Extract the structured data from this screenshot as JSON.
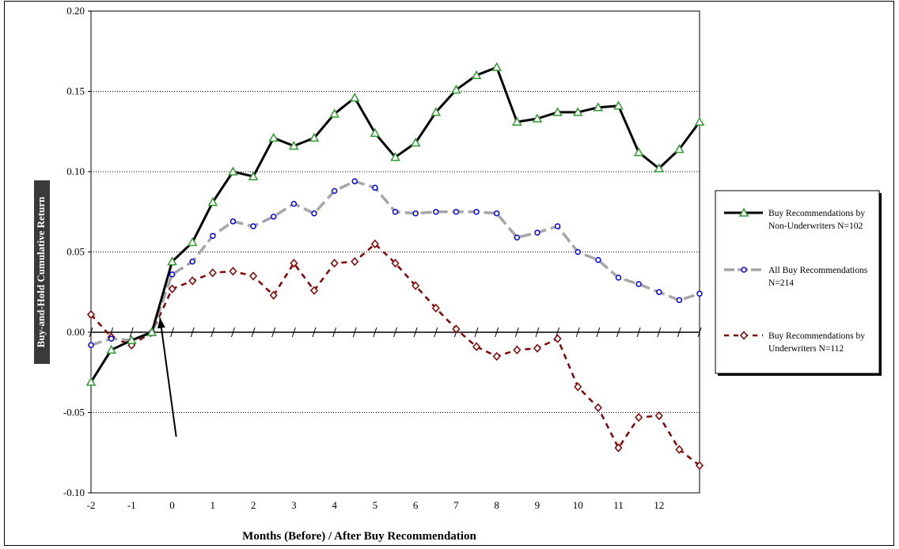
{
  "chart_data": {
    "type": "line",
    "title": "",
    "xlabel": "Months (Before) / After Buy Recommendation",
    "ylabel": "Buy-and-Hold Cumulative Return",
    "ylim": [
      -0.1,
      0.2
    ],
    "y_ticks": [
      "0.20",
      "0.15",
      "0.10",
      "0.05",
      "0.00",
      "-0.05",
      "-0.10"
    ],
    "x_tick_labels": [
      "-2",
      "-1",
      "0",
      "1",
      "2",
      "3",
      "4",
      "5",
      "6",
      "7",
      "8",
      "9",
      "10",
      "11",
      "12"
    ],
    "grid": "horizontal dotted",
    "legend_position": "right",
    "x": [
      -2,
      -1.5,
      -1,
      -0.5,
      0,
      0.5,
      1,
      1.5,
      2,
      2.5,
      3,
      3.5,
      4,
      4.5,
      5,
      5.5,
      6,
      6.5,
      7,
      7.5,
      8,
      8.5,
      9,
      9.5,
      10,
      10.5,
      11,
      11.5,
      12,
      12.5,
      13
    ],
    "series": [
      {
        "name": "Buy Recommendations by Non-Underwriters N=102",
        "legend_lines": [
          "Buy Recommendations by",
          "Non-Underwriters N=102"
        ],
        "color": "#000000",
        "marker_color": "#2e9b2e",
        "marker": "triangle",
        "dash": "solid",
        "values": [
          -0.031,
          -0.011,
          -0.005,
          0.0,
          0.044,
          0.056,
          0.081,
          0.1,
          0.097,
          0.121,
          0.116,
          0.121,
          0.136,
          0.146,
          0.124,
          0.109,
          0.118,
          0.137,
          0.151,
          0.16,
          0.165,
          0.131,
          0.133,
          0.137,
          0.137,
          0.14,
          0.141,
          0.112,
          0.102,
          0.114,
          0.131
        ]
      },
      {
        "name": "All Buy Recommendations N=214",
        "legend_lines": [
          "All Buy Recommendations",
          "N=214"
        ],
        "color": "#a6a6a6",
        "marker_color": "#0000ff",
        "marker": "circle",
        "dash": "long",
        "values": [
          -0.008,
          -0.004,
          -0.005,
          0.0,
          0.036,
          0.044,
          0.06,
          0.069,
          0.066,
          0.072,
          0.08,
          0.074,
          0.088,
          0.094,
          0.09,
          0.075,
          0.074,
          0.075,
          0.075,
          0.075,
          0.074,
          0.059,
          0.062,
          0.066,
          0.05,
          0.045,
          0.034,
          0.03,
          0.025,
          0.02,
          0.024
        ]
      },
      {
        "name": "Buy Recommendations by Underwriters N=112",
        "legend_lines": [
          "Buy Recommendations by",
          "Underwriters N=112"
        ],
        "color": "#8b0000",
        "marker_color": "#8b0000",
        "marker": "diamond",
        "dash": "short",
        "values": [
          0.011,
          -0.003,
          -0.008,
          0.0,
          0.027,
          0.032,
          0.037,
          0.038,
          0.035,
          0.023,
          0.043,
          0.026,
          0.043,
          0.044,
          0.055,
          0.043,
          0.029,
          0.015,
          0.002,
          -0.009,
          -0.015,
          -0.011,
          -0.01,
          -0.004,
          -0.034,
          -0.047,
          -0.072,
          -0.053,
          -0.052,
          -0.073,
          -0.083
        ]
      }
    ],
    "annotation": {
      "type": "arrow",
      "from": [
        0.1,
        -0.065
      ],
      "to": [
        -0.3,
        0.009
      ]
    }
  }
}
